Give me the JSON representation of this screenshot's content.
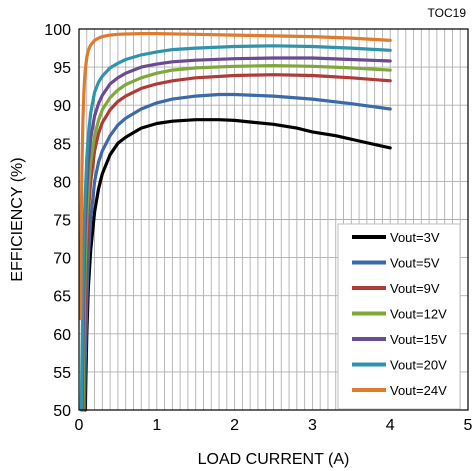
{
  "figure_tag": "TOC19",
  "chart_data": {
    "type": "line",
    "xlabel": "LOAD CURRENT (A)",
    "ylabel": "EFFICIENCY (%)",
    "xlim": [
      0,
      5
    ],
    "ylim": [
      50,
      100
    ],
    "x_ticks": [
      "0",
      "1",
      "2",
      "3",
      "4",
      "5"
    ],
    "y_ticks": [
      "50",
      "55",
      "60",
      "65",
      "70",
      "75",
      "80",
      "85",
      "90",
      "95",
      "100"
    ],
    "grid": true,
    "legend_position": "bottom-right",
    "series": [
      {
        "name": "Vout=3V",
        "color": "#000000",
        "x": [
          0.08,
          0.09,
          0.1,
          0.12,
          0.15,
          0.2,
          0.25,
          0.3,
          0.4,
          0.5,
          0.6,
          0.8,
          1.0,
          1.2,
          1.5,
          1.8,
          2.0,
          2.2,
          2.5,
          2.8,
          3.0,
          3.3,
          3.6,
          4.0
        ],
        "y": [
          50,
          55,
          60,
          66,
          71,
          76,
          79,
          81,
          83.5,
          85,
          85.8,
          87,
          87.6,
          87.9,
          88.1,
          88.1,
          88,
          87.8,
          87.5,
          87,
          86.5,
          86,
          85.3,
          84.4
        ]
      },
      {
        "name": "Vout=5V",
        "color": "#3a6aa8",
        "x": [
          0.07,
          0.08,
          0.1,
          0.12,
          0.15,
          0.2,
          0.25,
          0.3,
          0.4,
          0.5,
          0.6,
          0.8,
          1.0,
          1.2,
          1.5,
          1.8,
          2.0,
          2.5,
          3.0,
          3.5,
          4.0
        ],
        "y": [
          50,
          56,
          64,
          70,
          75,
          80,
          82.5,
          84,
          86,
          87.4,
          88.3,
          89.5,
          90.3,
          90.8,
          91.2,
          91.4,
          91.4,
          91.2,
          90.8,
          90.2,
          89.5
        ]
      },
      {
        "name": "Vout=9V",
        "color": "#b03a35",
        "x": [
          0.06,
          0.07,
          0.08,
          0.1,
          0.12,
          0.15,
          0.2,
          0.25,
          0.3,
          0.4,
          0.5,
          0.6,
          0.8,
          1.0,
          1.2,
          1.5,
          2.0,
          2.5,
          3.0,
          3.5,
          4.0
        ],
        "y": [
          50,
          58,
          64,
          71,
          76,
          80,
          84,
          86.3,
          87.7,
          89.4,
          90.5,
          91.2,
          92.2,
          92.8,
          93.2,
          93.6,
          93.9,
          94,
          93.9,
          93.6,
          93.2
        ]
      },
      {
        "name": "Vout=12V",
        "color": "#7ea83a",
        "x": [
          0.05,
          0.06,
          0.07,
          0.08,
          0.1,
          0.12,
          0.15,
          0.2,
          0.25,
          0.3,
          0.4,
          0.5,
          0.6,
          0.8,
          1.0,
          1.2,
          1.5,
          2.0,
          2.5,
          3.0,
          3.5,
          4.0
        ],
        "y": [
          50,
          58,
          64,
          69,
          75,
          79,
          82.5,
          86,
          88,
          89.4,
          91,
          92,
          92.7,
          93.6,
          94.2,
          94.6,
          94.9,
          95.1,
          95.2,
          95.1,
          94.9,
          94.6
        ]
      },
      {
        "name": "Vout=15V",
        "color": "#6a4a92",
        "x": [
          0.04,
          0.05,
          0.06,
          0.07,
          0.08,
          0.1,
          0.12,
          0.15,
          0.2,
          0.25,
          0.3,
          0.4,
          0.5,
          0.6,
          0.8,
          1.0,
          1.2,
          1.5,
          2.0,
          2.5,
          3.0,
          3.5,
          4.0
        ],
        "y": [
          50,
          58,
          65,
          70,
          74,
          79,
          82.5,
          85.7,
          88.6,
          90.2,
          91.3,
          92.8,
          93.6,
          94.2,
          95,
          95.4,
          95.7,
          95.9,
          96.1,
          96.2,
          96.2,
          96,
          95.8
        ]
      },
      {
        "name": "Vout=20V",
        "color": "#2e93ab",
        "x": [
          0.03,
          0.04,
          0.05,
          0.06,
          0.07,
          0.08,
          0.1,
          0.12,
          0.15,
          0.2,
          0.25,
          0.3,
          0.4,
          0.5,
          0.6,
          0.8,
          1.0,
          1.2,
          1.5,
          2.0,
          2.5,
          3.0,
          3.5,
          4.0
        ],
        "y": [
          50,
          58,
          65,
          71,
          75,
          78,
          83,
          86,
          89,
          91.7,
          93,
          93.8,
          94.9,
          95.5,
          96,
          96.6,
          97,
          97.3,
          97.5,
          97.7,
          97.8,
          97.7,
          97.5,
          97.2
        ]
      },
      {
        "name": "Vout=24V",
        "color": "#e07b2e",
        "x": [
          0.02,
          0.03,
          0.04,
          0.05,
          0.06,
          0.07,
          0.08,
          0.1,
          0.12,
          0.15,
          0.2,
          0.25,
          0.3,
          0.4,
          0.5,
          0.6,
          0.8,
          1.0,
          1.5,
          2.0,
          2.5,
          3.0,
          3.5,
          4.0
        ],
        "y": [
          62,
          75,
          83,
          88,
          91,
          93,
          94.5,
          96.3,
          97.2,
          97.9,
          98.5,
          98.8,
          99,
          99.2,
          99.3,
          99.35,
          99.4,
          99.4,
          99.3,
          99.2,
          99.1,
          99,
          98.8,
          98.5
        ]
      }
    ]
  }
}
